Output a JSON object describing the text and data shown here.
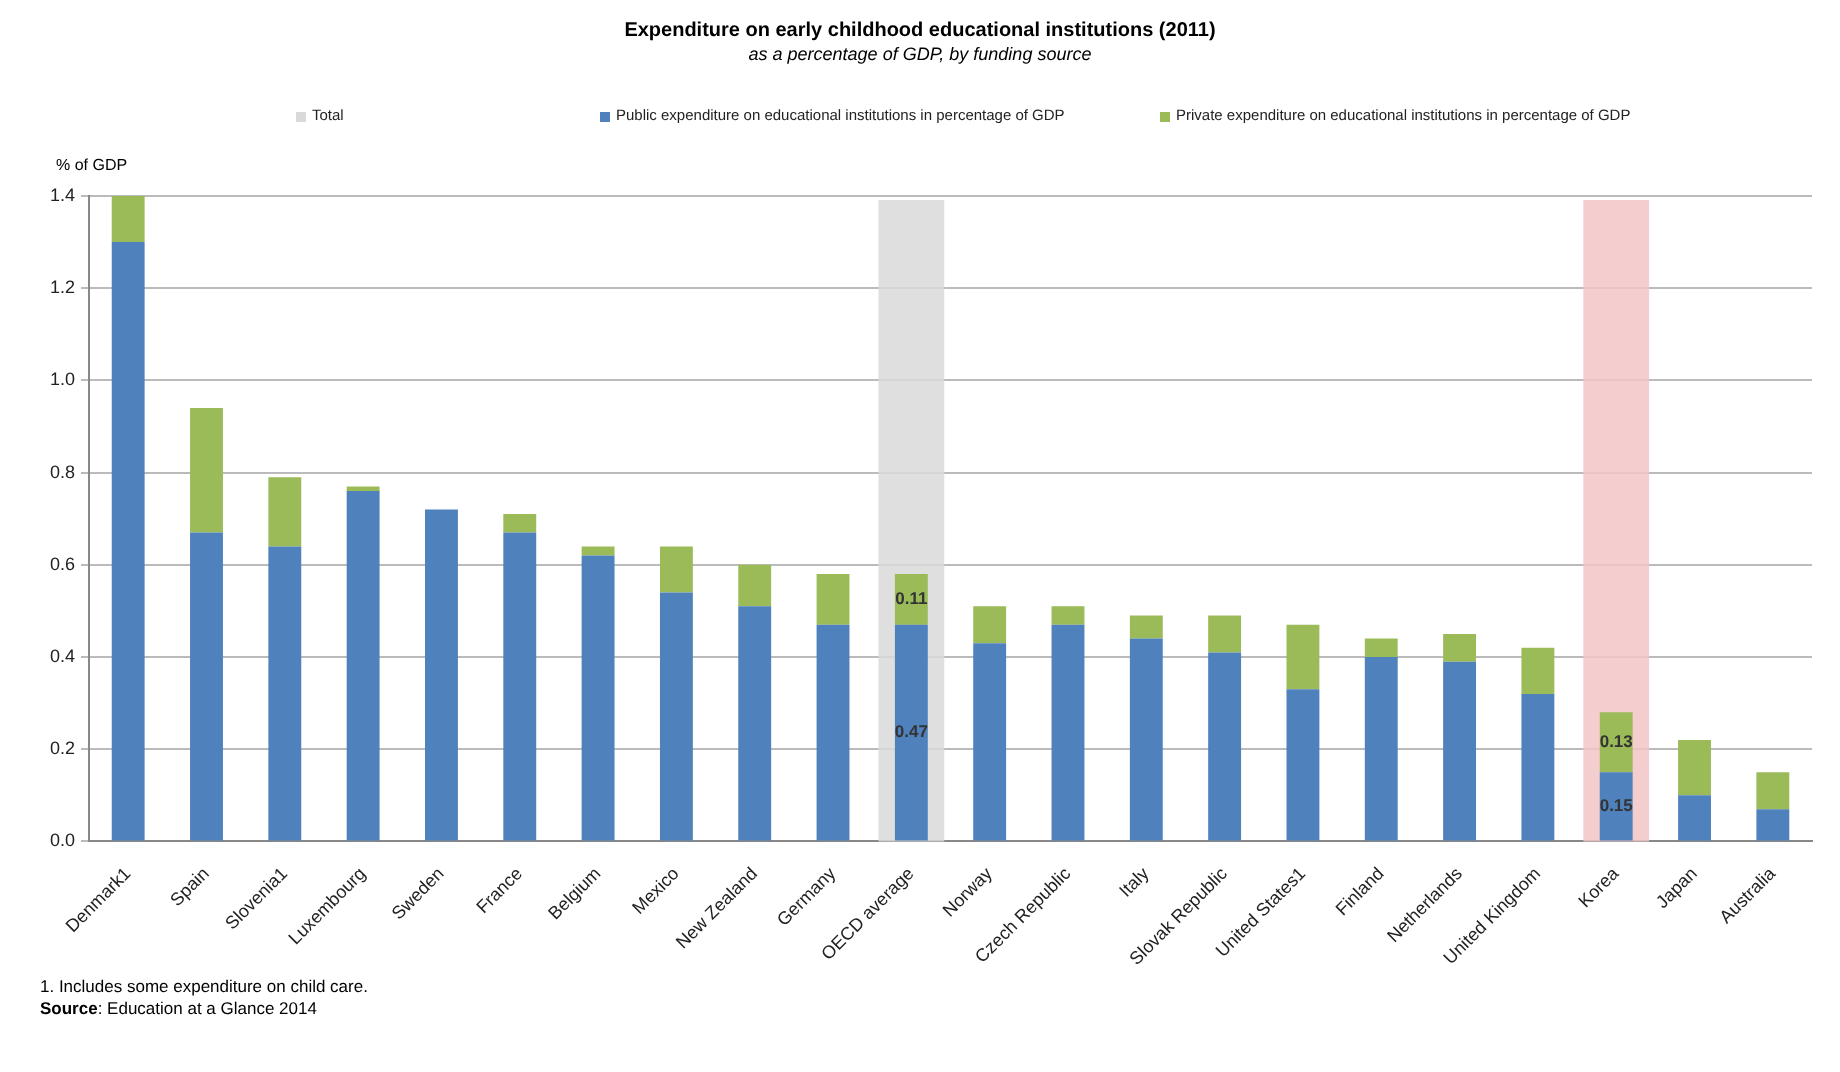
{
  "chart_data": {
    "type": "bar",
    "stacked": true,
    "title": "Expenditure on early childhood educational institutions (2011)",
    "subtitle": "as a percentage of GDP, by  funding source",
    "ylabel": "% of GDP",
    "categories": [
      "Denmark1",
      "Spain",
      "Slovenia1",
      "Luxembourg",
      "Sweden",
      "France",
      "Belgium",
      "Mexico",
      "New Zealand",
      "Germany",
      "OECD average",
      "Norway",
      "Czech Republic",
      "Italy",
      "Slovak Republic",
      "United States1",
      "Finland",
      "Netherlands",
      "United Kingdom",
      "Korea",
      "Japan",
      "Australia"
    ],
    "series": [
      {
        "name": "Public expenditure on educational institutions in percentage of GDP",
        "color": "#4f81bd",
        "values": [
          1.3,
          0.67,
          0.64,
          0.76,
          0.72,
          0.67,
          0.62,
          0.54,
          0.51,
          0.47,
          0.47,
          0.43,
          0.47,
          0.44,
          0.41,
          0.33,
          0.4,
          0.39,
          0.32,
          0.15,
          0.1,
          0.07
        ],
        "value_labels": [
          null,
          null,
          null,
          null,
          null,
          null,
          null,
          null,
          null,
          null,
          "0.47",
          null,
          null,
          null,
          null,
          null,
          null,
          null,
          null,
          "0.15",
          null,
          null
        ]
      },
      {
        "name": "Private expenditure on educational institutions in percentage of GDP",
        "color": "#9bbb59",
        "values": [
          0.1,
          0.27,
          0.15,
          0.01,
          null,
          0.04,
          0.02,
          0.1,
          0.09,
          0.11,
          0.11,
          0.08,
          0.04,
          0.05,
          0.08,
          0.14,
          0.04,
          0.06,
          0.1,
          0.13,
          0.12,
          0.08
        ],
        "value_labels": [
          null,
          null,
          null,
          null,
          null,
          null,
          null,
          null,
          null,
          null,
          "0.11",
          null,
          null,
          null,
          null,
          null,
          null,
          null,
          null,
          "0.13",
          null,
          null
        ]
      }
    ],
    "bands": [
      {
        "axis": "x",
        "from": "OECD average",
        "to": "OECD average",
        "label": "Total",
        "color": "#d9d9d9"
      },
      {
        "axis": "x",
        "from": "Korea",
        "to": "Korea",
        "color": "#f2c4c6"
      }
    ],
    "ylim": [
      0,
      1.4
    ],
    "yticks": [
      {
        "value": 0,
        "label": "0.0"
      },
      0.2,
      0.4,
      0.6,
      0.8,
      {
        "value": 1,
        "label": "1.0"
      },
      1.2,
      1.4
    ],
    "grid": "y",
    "legend": "top",
    "annotations": [
      "1. Includes some expenditure on child care.",
      "Source: Education at a Glance 2014"
    ]
  }
}
